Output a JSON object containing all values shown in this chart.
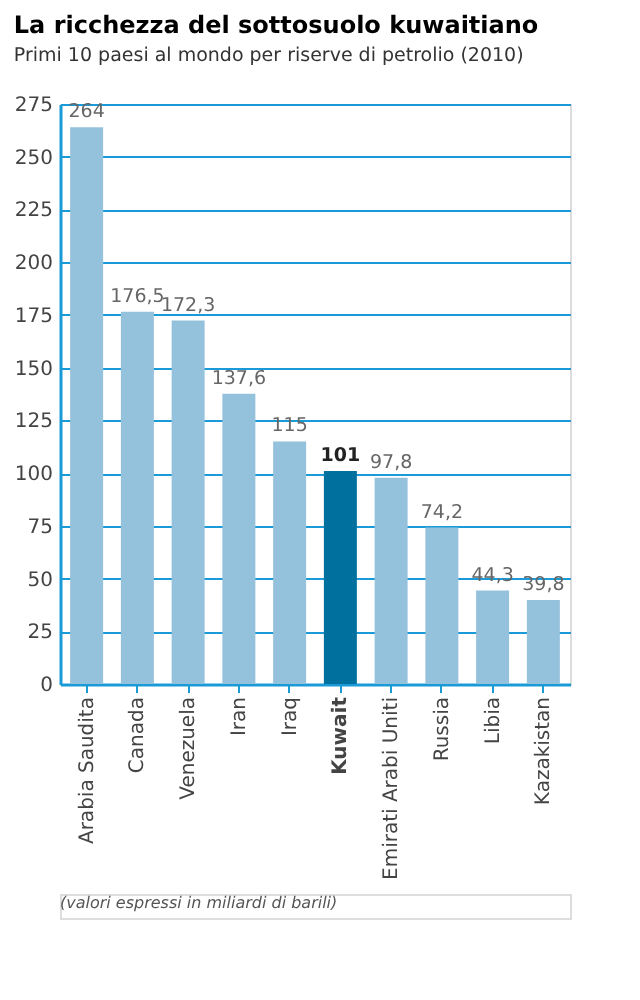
{
  "chart_data": {
    "type": "bar",
    "title": "La ricchezza del sottosuolo kuwaitiano",
    "subtitle": "Primi 10 paesi al mondo per riserve di petrolio (2010)",
    "categories": [
      "Arabia Saudita",
      "Canada",
      "Venezuela",
      "Iran",
      "Iraq",
      "Kuwait",
      "Emirati Arabi Uniti",
      "Russia",
      "Libia",
      "Kazakistan"
    ],
    "values": [
      264,
      176.5,
      172.3,
      137.6,
      115,
      101,
      97.8,
      74.2,
      44.3,
      39.8
    ],
    "value_labels": [
      "264",
      "176,5",
      "172,3",
      "137,6",
      "115",
      "101",
      "97,8",
      "74,2",
      "44,3",
      "39,8"
    ],
    "colors": [
      "#94c1dc",
      "#94c1dc",
      "#94c1dc",
      "#94c1dc",
      "#94c1dc",
      "#00719f",
      "#94c1dc",
      "#94c1dc",
      "#94c1dc",
      "#94c1dc"
    ],
    "ylim": [
      0,
      275
    ],
    "yticks": [
      0,
      25,
      50,
      75,
      100,
      125,
      150,
      175,
      200,
      225,
      250,
      275
    ],
    "grid": "y",
    "annotations": [
      "(valori espressi in miliardi di barili)"
    ]
  }
}
